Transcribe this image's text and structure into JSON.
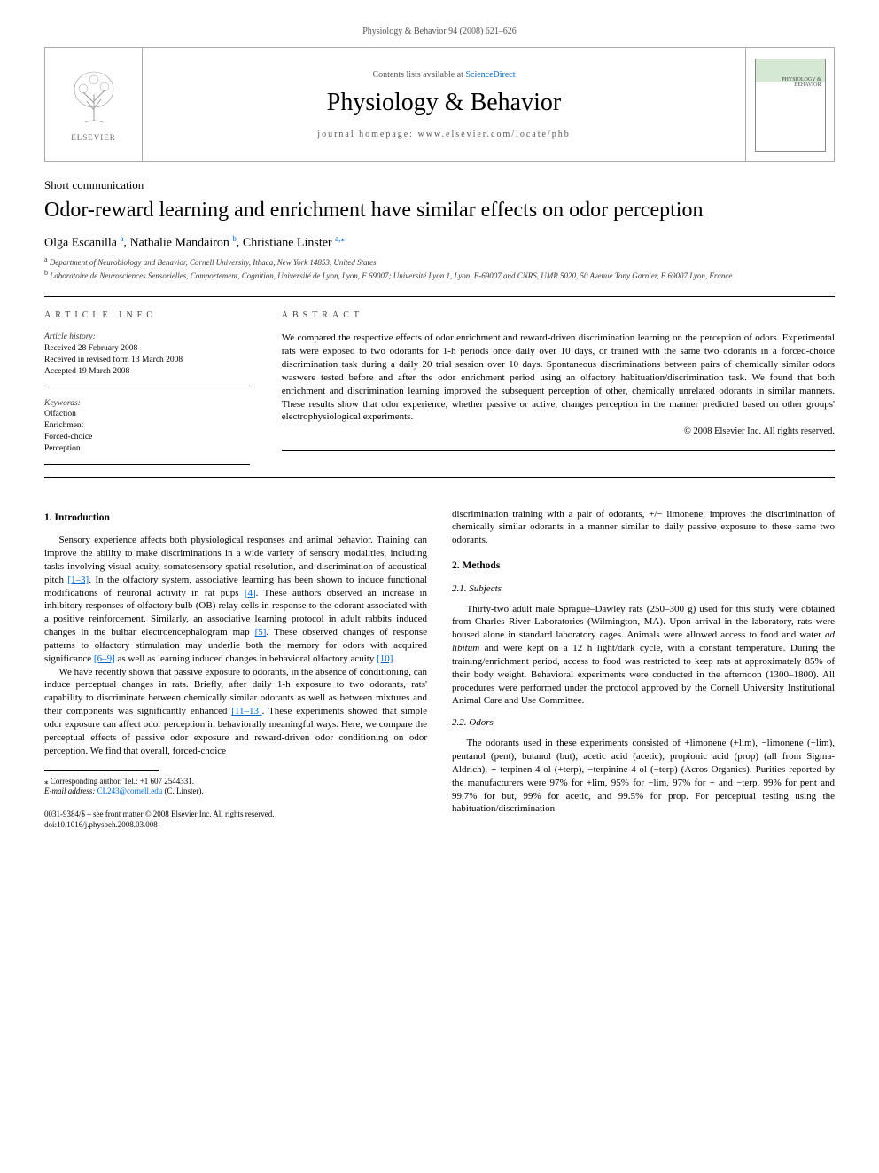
{
  "header": {
    "running_head": "Physiology & Behavior 94 (2008) 621–626"
  },
  "journal_box": {
    "contents_prefix": "Contents lists available at ",
    "contents_link": "ScienceDirect",
    "journal_name": "Physiology & Behavior",
    "homepage_prefix": "journal homepage: ",
    "homepage_url": "www.elsevier.com/locate/phb",
    "elsevier_label": "ELSEVIER",
    "cover_title": "PHYSIOLOGY\n&\nBEHAVIOR"
  },
  "article": {
    "type": "Short communication",
    "title": "Odor-reward learning and enrichment have similar effects on odor perception",
    "authors_html": "Olga Escanilla <sup class='aff-link'>a</sup>, Nathalie Mandairon <sup class='aff-link'>b</sup>, Christiane Linster <sup class='aff-link'>a,</sup><sup class='star'>⁎</sup>",
    "affil_a": "Department of Neurobiology and Behavior, Cornell University, Ithaca, New York 14853, United States",
    "affil_b": "Laboratoire de Neurosciences Sensorielles, Comportement, Cognition, Université de Lyon, Lyon, F 69007; Université Lyon 1, Lyon, F-69007 and CNRS, UMR 5020, 50 Avenue Tony Garnier, F 69007 Lyon, France"
  },
  "info": {
    "heading": "ARTICLE INFO",
    "history_label": "Article history:",
    "received": "Received 28 February 2008",
    "revised": "Received in revised form 13 March 2008",
    "accepted": "Accepted 19 March 2008",
    "keywords_label": "Keywords:",
    "keywords": [
      "Olfaction",
      "Enrichment",
      "Forced-choice",
      "Perception"
    ]
  },
  "abstract": {
    "heading": "ABSTRACT",
    "text": "We compared the respective effects of odor enrichment and reward-driven discrimination learning on the perception of odors. Experimental rats were exposed to two odorants for 1-h periods once daily over 10 days, or trained with the same two odorants in a forced-choice discrimination task during a daily 20 trial session over 10 days. Spontaneous discriminations between pairs of chemically similar odors waswere tested before and after the odor enrichment period using an olfactory habituation/discrimination task. We found that both enrichment and discrimination learning improved the subsequent perception of other, chemically unrelated odorants in similar manners. These results show that odor experience, whether passive or active, changes perception in the manner predicted based on other groups' electrophysiological experiments.",
    "copyright": "© 2008 Elsevier Inc. All rights reserved."
  },
  "body": {
    "s1_heading": "1. Introduction",
    "s1_p1a": "Sensory experience affects both physiological responses and animal behavior. Training can improve the ability to make discriminations in a wide variety of sensory modalities, including tasks involving visual acuity, somatosensory spatial resolution, and discrimination of acoustical pitch ",
    "s1_ref1": "[1–3]",
    "s1_p1b": ". In the olfactory system, associative learning has been shown to induce functional modifications of neuronal activity in rat pups ",
    "s1_ref2": "[4]",
    "s1_p1c": ". These authors observed an increase in inhibitory responses of olfactory bulb (OB) relay cells in response to the odorant associated with a positive reinforcement. Similarly, an associative learning protocol in adult rabbits induced changes in the bulbar electroencephalogram map ",
    "s1_ref3": "[5]",
    "s1_p1d": ". These observed changes of response patterns to olfactory stimulation may underlie both the memory for odors with acquired significance ",
    "s1_ref4": "[6–9]",
    "s1_p1e": " as well as learning induced changes in behavioral olfactory acuity ",
    "s1_ref5": "[10]",
    "s1_p1f": ".",
    "s1_p2a": "We have recently shown that passive exposure to odorants, in the absence of conditioning, can induce perceptual changes in rats. Briefly, after daily 1-h exposure to two odorants, rats' capability to discriminate between chemically similar odorants as well as between mixtures and their components was significantly enhanced ",
    "s1_ref6": "[11–13]",
    "s1_p2b": ". These experiments showed that simple odor exposure can affect odor perception in behaviorally meaningful ways. Here, we compare the perceptual effects of passive odor exposure and reward-driven odor conditioning on odor perception. We find that overall, forced-choice",
    "s1_p3": "discrimination training with a pair of odorants, +/− limonene, improves the discrimination of chemically similar odorants in a manner similar to daily passive exposure to these same two odorants.",
    "s2_heading": "2. Methods",
    "s21_heading": "2.1. Subjects",
    "s21_p1a": "Thirty-two adult male Sprague–Dawley rats (250–300 g) used for this study were obtained from Charles River Laboratories (Wilmington, MA). Upon arrival in the laboratory, rats were housed alone in standard laboratory cages. Animals were allowed access to food and water ",
    "s21_adlib": "ad libitum",
    "s21_p1b": " and were kept on a 12 h light/dark cycle, with a constant temperature. During the training/enrichment period, access to food was restricted to keep rats at approximately 85% of their body weight. Behavioral experiments were conducted in the afternoon (1300–1800). All procedures were performed under the protocol approved by the Cornell University Institutional Animal Care and Use Committee.",
    "s22_heading": "2.2. Odors",
    "s22_p1": "The odorants used in these experiments consisted of +limonene (+lim), −limonene (−lim), pentanol (pent), butanol (but), acetic acid (acetic), propionic acid (prop) (all from Sigma-Aldrich), + terpinen-4-ol (+terp), −terpinine-4-ol (−terp) (Acros Organics). Purities reported by the manufacturers were 97% for +lim, 95% for −lim, 97% for + and −terp, 99% for pent and 99.7% for but, 99% for acetic, and 99.5% for prop. For perceptual testing using the habituation/discrimination"
  },
  "footnote": {
    "corr_prefix": "⁎ Corresponding author. Tel.: +1 607 2544331.",
    "email_label": "E-mail address:",
    "email": "CL243@cornell.edu",
    "email_suffix": "(C. Linster)."
  },
  "footer": {
    "line1": "0031-9384/$ – see front matter © 2008 Elsevier Inc. All rights reserved.",
    "line2": "doi:10.1016/j.physbeh.2008.03.008"
  },
  "colors": {
    "link": "#0066cc",
    "text": "#000000",
    "muted": "#555555",
    "border": "#aaaaaa"
  }
}
